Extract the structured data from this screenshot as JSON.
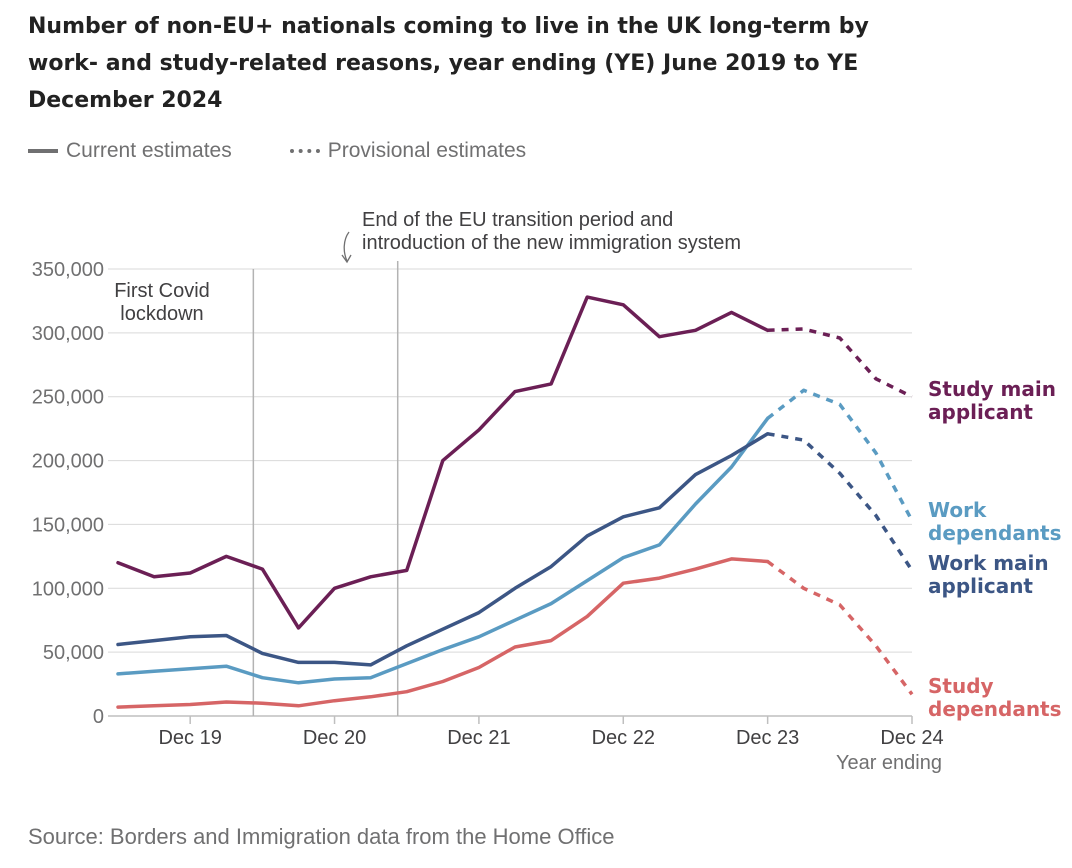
{
  "title": "Number of non-EU+ nationals coming to live in the UK long-term by work- and study-related reasons, year ending (YE) June 2019 to YE December 2024",
  "legend": {
    "current": "Current estimates",
    "provisional": "Provisional estimates"
  },
  "source": "Source: Borders and Immigration data from the Home Office",
  "colors": {
    "study_main": "#6b1f55",
    "work_dependants": "#5a9bc2",
    "work_main": "#3c5685",
    "study_dependants": "#d66566",
    "grid": "#d9d9d9",
    "annotation": "#b3b3b3"
  },
  "chart_data": {
    "type": "line",
    "x": [
      "YE Jun 19",
      "YE Sep 19",
      "YE Dec 19",
      "YE Mar 20",
      "YE Jun 20",
      "YE Sep 20",
      "YE Dec 20",
      "YE Mar 21",
      "YE Jun 21",
      "YE Sep 21",
      "YE Dec 21",
      "YE Mar 22",
      "YE Jun 22",
      "YE Sep 22",
      "YE Dec 22",
      "YE Mar 23",
      "YE Jun 23",
      "YE Sep 23",
      "YE Dec 23",
      "YE Mar 24",
      "YE Jun 24",
      "YE Sep 24",
      "YE Dec 24"
    ],
    "x_tick_labels": [
      {
        "label": "Dec 19",
        "index": 2
      },
      {
        "label": "Dec 20",
        "index": 6
      },
      {
        "label": "Dec 21",
        "index": 10
      },
      {
        "label": "Dec 22",
        "index": 14
      },
      {
        "label": "Dec 23",
        "index": 18
      },
      {
        "label": "Dec 24",
        "index": 22
      }
    ],
    "xlabel": "Year ending",
    "ylim": [
      0,
      350000
    ],
    "y_ticks": [
      {
        "value": 0,
        "label": "0"
      },
      {
        "value": 50000,
        "label": "50,000"
      },
      {
        "value": 100000,
        "label": "100,000"
      },
      {
        "value": 150000,
        "label": "150,000"
      },
      {
        "value": 200000,
        "label": "200,000"
      },
      {
        "value": 250000,
        "label": "250,000"
      },
      {
        "value": 300000,
        "label": "300,000"
      },
      {
        "value": 350000,
        "label": "350,000"
      }
    ],
    "grid": true,
    "provisional_from_index": 18,
    "series": [
      {
        "name": "Study main applicant",
        "label_lines": [
          "Study main",
          "applicant"
        ],
        "color_key": "study_main",
        "values": [
          120000,
          109000,
          112000,
          125000,
          115000,
          69000,
          100000,
          109000,
          114000,
          200000,
          224000,
          254000,
          260000,
          328000,
          322000,
          297000,
          302000,
          316000,
          302000,
          303000,
          296000,
          264000,
          250000
        ]
      },
      {
        "name": "Work dependants",
        "label_lines": [
          "Work",
          "dependants"
        ],
        "color_key": "work_dependants",
        "values": [
          33000,
          35000,
          37000,
          39000,
          30000,
          26000,
          29000,
          30000,
          41000,
          52000,
          62000,
          75000,
          88000,
          106000,
          124000,
          134000,
          166000,
          195000,
          233000,
          255000,
          244000,
          206000,
          153000
        ]
      },
      {
        "name": "Work main applicant",
        "label_lines": [
          "Work main",
          "applicant"
        ],
        "color_key": "work_main",
        "values": [
          56000,
          59000,
          62000,
          63000,
          49000,
          42000,
          42000,
          40000,
          55000,
          68000,
          81000,
          100000,
          117000,
          141000,
          156000,
          163000,
          189000,
          204000,
          221000,
          216000,
          190000,
          157000,
          114000
        ]
      },
      {
        "name": "Study dependants",
        "label_lines": [
          "Study",
          "dependants"
        ],
        "color_key": "study_dependants",
        "values": [
          7000,
          8000,
          9000,
          11000,
          10000,
          8000,
          12000,
          15000,
          19000,
          27000,
          38000,
          54000,
          59000,
          78000,
          104000,
          108000,
          115000,
          123000,
          121000,
          100000,
          87000,
          55000,
          17000
        ]
      }
    ],
    "annotations": [
      {
        "text_lines": [
          "First Covid",
          "lockdown"
        ],
        "x_index": 3.75
      },
      {
        "text_lines": [
          "End of the EU transition period and",
          "introduction of the new immigration system"
        ],
        "x_index": 7.75
      }
    ]
  }
}
